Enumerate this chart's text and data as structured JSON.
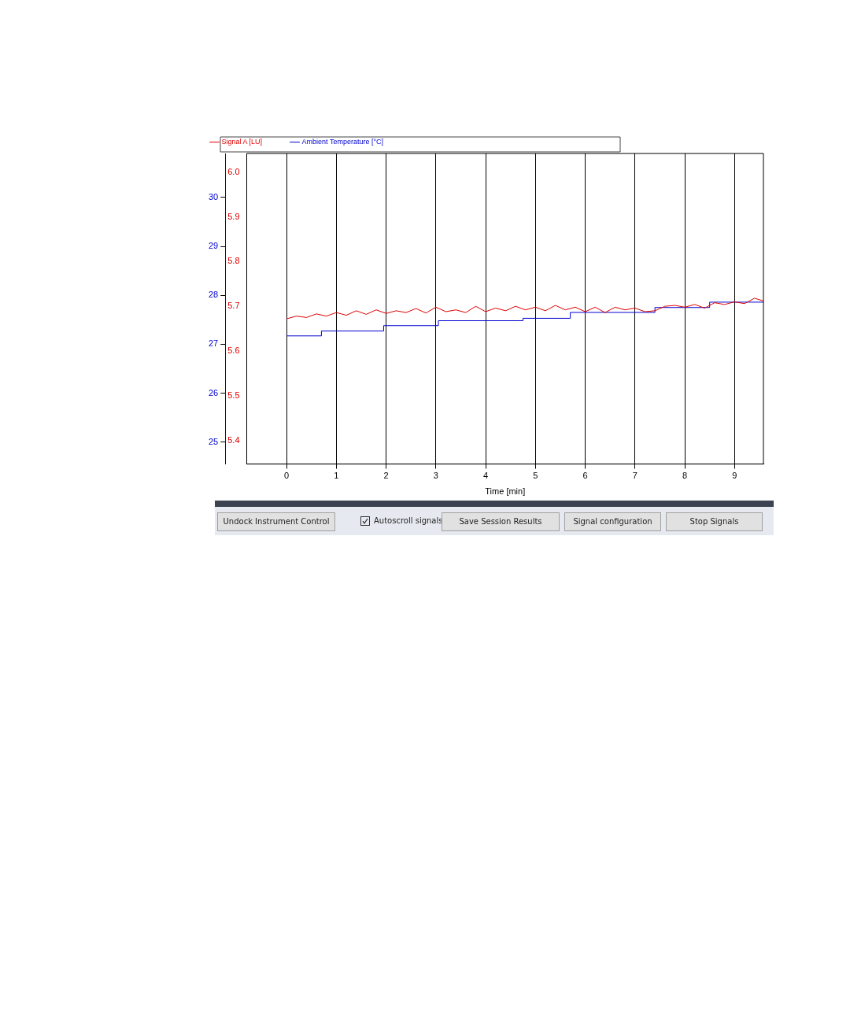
{
  "chart_data": {
    "type": "line",
    "xlabel": "Time [min]",
    "legend": "top",
    "grid": "x",
    "marker": "none",
    "line_style": "solid",
    "xlim": [
      -0.8,
      9.58
    ],
    "xticks": [
      0,
      1,
      2,
      3,
      4,
      5,
      6,
      7,
      8,
      9
    ],
    "ylim": [
      5.347,
      6.042
    ],
    "yticks": [
      {
        "value": 5.4,
        "label": "5.4"
      },
      {
        "value": 5.5,
        "label": "5.5"
      },
      {
        "value": 5.6,
        "label": "5.6"
      },
      {
        "value": 5.7,
        "label": "5.7"
      },
      {
        "value": 5.8,
        "label": "5.8"
      },
      {
        "value": 5.9,
        "label": "5.9"
      },
      {
        "value": 6,
        "label": "6.0"
      }
    ],
    "y2lim": [
      24.55,
      30.9
    ],
    "y2ticks": [
      25,
      26,
      27,
      28,
      29,
      30
    ],
    "series": [
      {
        "name": "Signal A [LU]",
        "color": "#e00000",
        "x": [
          0,
          0.2,
          0.4,
          0.6,
          0.8,
          1,
          1.2,
          1.4,
          1.6,
          1.8,
          2,
          2.2,
          2.4,
          2.6,
          2.8,
          3,
          3.2,
          3.4,
          3.6,
          3.8,
          4,
          4.2,
          4.4,
          4.6,
          4.8,
          5,
          5.2,
          5.4,
          5.6,
          5.8,
          6,
          6.2,
          6.4,
          6.6,
          6.8,
          7,
          7.2,
          7.4,
          7.6,
          7.8,
          8,
          8.2,
          8.4,
          8.6,
          8.8,
          9,
          9.2,
          9.4,
          9.58
        ],
        "values": [
          5.672,
          5.678,
          5.675,
          5.683,
          5.678,
          5.686,
          5.68,
          5.69,
          5.682,
          5.692,
          5.684,
          5.69,
          5.686,
          5.695,
          5.685,
          5.698,
          5.688,
          5.692,
          5.686,
          5.7,
          5.688,
          5.696,
          5.69,
          5.7,
          5.692,
          5.698,
          5.69,
          5.702,
          5.692,
          5.698,
          5.688,
          5.698,
          5.686,
          5.698,
          5.692,
          5.696,
          5.688,
          5.69,
          5.7,
          5.702,
          5.698,
          5.704,
          5.696,
          5.708,
          5.704,
          5.71,
          5.706,
          5.718,
          5.712
        ]
      },
      {
        "name": "Ambient Temperature [°C]",
        "color": "#0000d0",
        "axis": "y2",
        "x": [
          0,
          0.7,
          0.7,
          1.95,
          1.95,
          3.05,
          3.05,
          4.75,
          4.75,
          5.7,
          5.7,
          7.4,
          7.4,
          8.5,
          8.5,
          9.58
        ],
        "values": [
          27.17,
          27.17,
          27.27,
          27.27,
          27.38,
          27.38,
          27.48,
          27.48,
          27.53,
          27.53,
          27.65,
          27.65,
          27.75,
          27.75,
          27.86,
          27.86
        ]
      }
    ],
    "annotations": [
      "Undock Instrument Control",
      "Autoscroll signals",
      "Save Session Results",
      "Signal configuration",
      "Stop Signals"
    ]
  }
}
